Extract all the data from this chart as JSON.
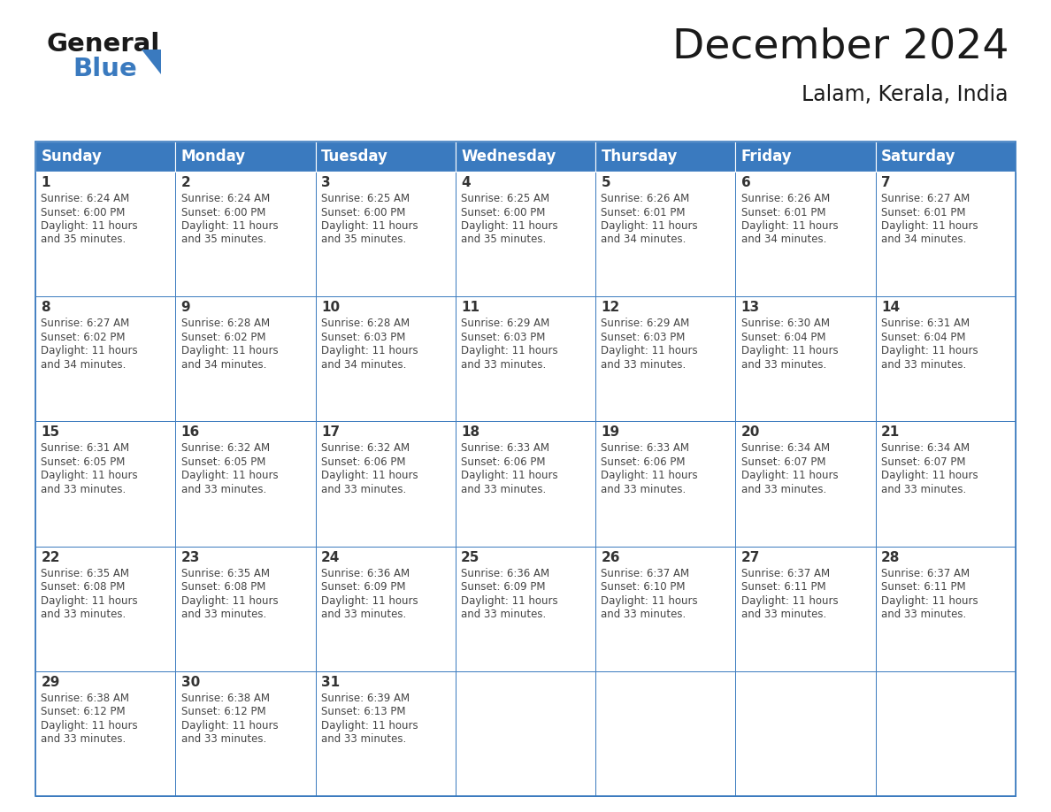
{
  "title": "December 2024",
  "subtitle": "Lalam, Kerala, India",
  "header_bg": "#3a7abf",
  "header_text_color": "#ffffff",
  "cell_border_color": "#3a7abf",
  "day_number_color": "#333333",
  "cell_text_color": "#444444",
  "bg_color": "#ffffff",
  "days_of_week": [
    "Sunday",
    "Monday",
    "Tuesday",
    "Wednesday",
    "Thursday",
    "Friday",
    "Saturday"
  ],
  "weeks": [
    [
      {
        "day": 1,
        "sunrise": "6:24 AM",
        "sunset": "6:00 PM",
        "daylight": "11 hours",
        "daylight2": "and 35 minutes."
      },
      {
        "day": 2,
        "sunrise": "6:24 AM",
        "sunset": "6:00 PM",
        "daylight": "11 hours",
        "daylight2": "and 35 minutes."
      },
      {
        "day": 3,
        "sunrise": "6:25 AM",
        "sunset": "6:00 PM",
        "daylight": "11 hours",
        "daylight2": "and 35 minutes."
      },
      {
        "day": 4,
        "sunrise": "6:25 AM",
        "sunset": "6:00 PM",
        "daylight": "11 hours",
        "daylight2": "and 35 minutes."
      },
      {
        "day": 5,
        "sunrise": "6:26 AM",
        "sunset": "6:01 PM",
        "daylight": "11 hours",
        "daylight2": "and 34 minutes."
      },
      {
        "day": 6,
        "sunrise": "6:26 AM",
        "sunset": "6:01 PM",
        "daylight": "11 hours",
        "daylight2": "and 34 minutes."
      },
      {
        "day": 7,
        "sunrise": "6:27 AM",
        "sunset": "6:01 PM",
        "daylight": "11 hours",
        "daylight2": "and 34 minutes."
      }
    ],
    [
      {
        "day": 8,
        "sunrise": "6:27 AM",
        "sunset": "6:02 PM",
        "daylight": "11 hours",
        "daylight2": "and 34 minutes."
      },
      {
        "day": 9,
        "sunrise": "6:28 AM",
        "sunset": "6:02 PM",
        "daylight": "11 hours",
        "daylight2": "and 34 minutes."
      },
      {
        "day": 10,
        "sunrise": "6:28 AM",
        "sunset": "6:03 PM",
        "daylight": "11 hours",
        "daylight2": "and 34 minutes."
      },
      {
        "day": 11,
        "sunrise": "6:29 AM",
        "sunset": "6:03 PM",
        "daylight": "11 hours",
        "daylight2": "and 33 minutes."
      },
      {
        "day": 12,
        "sunrise": "6:29 AM",
        "sunset": "6:03 PM",
        "daylight": "11 hours",
        "daylight2": "and 33 minutes."
      },
      {
        "day": 13,
        "sunrise": "6:30 AM",
        "sunset": "6:04 PM",
        "daylight": "11 hours",
        "daylight2": "and 33 minutes."
      },
      {
        "day": 14,
        "sunrise": "6:31 AM",
        "sunset": "6:04 PM",
        "daylight": "11 hours",
        "daylight2": "and 33 minutes."
      }
    ],
    [
      {
        "day": 15,
        "sunrise": "6:31 AM",
        "sunset": "6:05 PM",
        "daylight": "11 hours",
        "daylight2": "and 33 minutes."
      },
      {
        "day": 16,
        "sunrise": "6:32 AM",
        "sunset": "6:05 PM",
        "daylight": "11 hours",
        "daylight2": "and 33 minutes."
      },
      {
        "day": 17,
        "sunrise": "6:32 AM",
        "sunset": "6:06 PM",
        "daylight": "11 hours",
        "daylight2": "and 33 minutes."
      },
      {
        "day": 18,
        "sunrise": "6:33 AM",
        "sunset": "6:06 PM",
        "daylight": "11 hours",
        "daylight2": "and 33 minutes."
      },
      {
        "day": 19,
        "sunrise": "6:33 AM",
        "sunset": "6:06 PM",
        "daylight": "11 hours",
        "daylight2": "and 33 minutes."
      },
      {
        "day": 20,
        "sunrise": "6:34 AM",
        "sunset": "6:07 PM",
        "daylight": "11 hours",
        "daylight2": "and 33 minutes."
      },
      {
        "day": 21,
        "sunrise": "6:34 AM",
        "sunset": "6:07 PM",
        "daylight": "11 hours",
        "daylight2": "and 33 minutes."
      }
    ],
    [
      {
        "day": 22,
        "sunrise": "6:35 AM",
        "sunset": "6:08 PM",
        "daylight": "11 hours",
        "daylight2": "and 33 minutes."
      },
      {
        "day": 23,
        "sunrise": "6:35 AM",
        "sunset": "6:08 PM",
        "daylight": "11 hours",
        "daylight2": "and 33 minutes."
      },
      {
        "day": 24,
        "sunrise": "6:36 AM",
        "sunset": "6:09 PM",
        "daylight": "11 hours",
        "daylight2": "and 33 minutes."
      },
      {
        "day": 25,
        "sunrise": "6:36 AM",
        "sunset": "6:09 PM",
        "daylight": "11 hours",
        "daylight2": "and 33 minutes."
      },
      {
        "day": 26,
        "sunrise": "6:37 AM",
        "sunset": "6:10 PM",
        "daylight": "11 hours",
        "daylight2": "and 33 minutes."
      },
      {
        "day": 27,
        "sunrise": "6:37 AM",
        "sunset": "6:11 PM",
        "daylight": "11 hours",
        "daylight2": "and 33 minutes."
      },
      {
        "day": 28,
        "sunrise": "6:37 AM",
        "sunset": "6:11 PM",
        "daylight": "11 hours",
        "daylight2": "and 33 minutes."
      }
    ],
    [
      {
        "day": 29,
        "sunrise": "6:38 AM",
        "sunset": "6:12 PM",
        "daylight": "11 hours",
        "daylight2": "and 33 minutes."
      },
      {
        "day": 30,
        "sunrise": "6:38 AM",
        "sunset": "6:12 PM",
        "daylight": "11 hours",
        "daylight2": "and 33 minutes."
      },
      {
        "day": 31,
        "sunrise": "6:39 AM",
        "sunset": "6:13 PM",
        "daylight": "11 hours",
        "daylight2": "and 33 minutes."
      },
      null,
      null,
      null,
      null
    ]
  ],
  "logo_general_color": "#1a1a1a",
  "logo_blue_color": "#3a7abf",
  "title_fontsize": 34,
  "subtitle_fontsize": 17,
  "header_fontsize": 12,
  "day_num_fontsize": 11,
  "cell_text_fontsize": 8.5
}
